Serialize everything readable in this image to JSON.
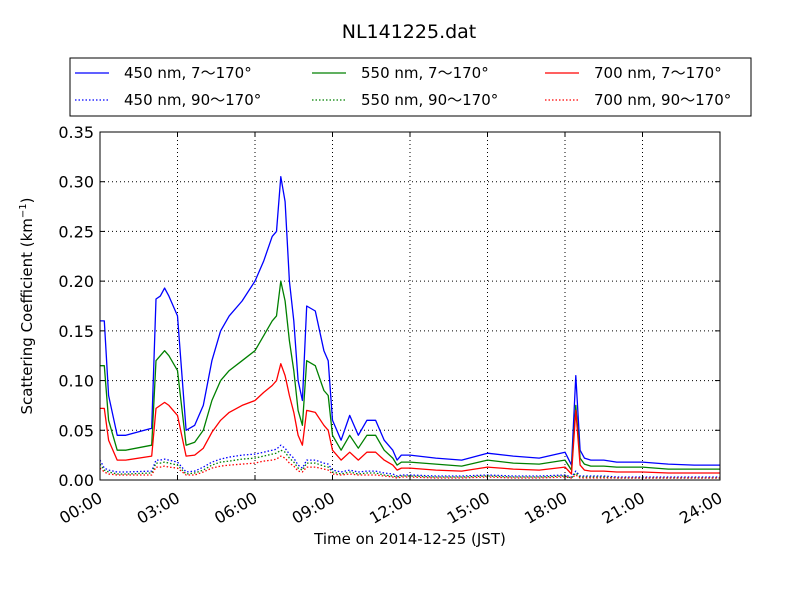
{
  "chart_data": {
    "type": "line",
    "title": "NL141225.dat",
    "xlabel": "Time on 2014-12-25 (JST)",
    "ylabel_main": "Scattering Coefficient (km",
    "ylabel_sup": "−1",
    "ylabel_end": ")",
    "xlim": [
      "00:00",
      "24:00"
    ],
    "ylim": [
      0,
      0.35
    ],
    "grid": true,
    "legend_placement": "top, above plot",
    "x_ticks": [
      "00:00",
      "03:00",
      "06:00",
      "09:00",
      "12:00",
      "15:00",
      "18:00",
      "21:00",
      "24:00"
    ],
    "y_ticks": [
      "0.00",
      "0.05",
      "0.10",
      "0.15",
      "0.20",
      "0.25",
      "0.30",
      "0.35"
    ],
    "x_tick_values": [
      0,
      3,
      6,
      9,
      12,
      15,
      18,
      21,
      24
    ],
    "y_tick_values": [
      0,
      0.05,
      0.1,
      0.15,
      0.2,
      0.25,
      0.3,
      0.35
    ],
    "x": [
      "00:00",
      "00:10",
      "00:20",
      "00:40",
      "01:00",
      "02:00",
      "02:10",
      "02:20",
      "02:30",
      "02:40",
      "03:00",
      "03:20",
      "03:40",
      "04:00",
      "04:20",
      "04:40",
      "05:00",
      "05:30",
      "06:00",
      "06:20",
      "06:40",
      "06:50",
      "07:00",
      "07:10",
      "07:20",
      "07:30",
      "07:40",
      "07:50",
      "08:00",
      "08:20",
      "08:40",
      "08:50",
      "09:00",
      "09:20",
      "09:40",
      "10:00",
      "10:20",
      "10:40",
      "11:00",
      "11:20",
      "11:30",
      "11:40",
      "12:00",
      "13:00",
      "14:00",
      "15:00",
      "16:00",
      "17:00",
      "18:00",
      "18:15",
      "18:25",
      "18:35",
      "18:45",
      "19:00",
      "19:30",
      "20:00",
      "21:00",
      "22:00",
      "23:00",
      "24:00"
    ],
    "series": [
      {
        "name": "450 nm, 7～170°",
        "color": "#0000ff",
        "style": "solid",
        "values": [
          0.16,
          0.16,
          0.085,
          0.045,
          0.045,
          0.052,
          0.182,
          0.185,
          0.193,
          0.185,
          0.165,
          0.05,
          0.055,
          0.075,
          0.12,
          0.15,
          0.165,
          0.18,
          0.2,
          0.22,
          0.245,
          0.25,
          0.305,
          0.28,
          0.2,
          0.16,
          0.1,
          0.08,
          0.175,
          0.17,
          0.13,
          0.12,
          0.06,
          0.04,
          0.065,
          0.045,
          0.06,
          0.06,
          0.04,
          0.03,
          0.02,
          0.025,
          0.025,
          0.022,
          0.02,
          0.027,
          0.024,
          0.022,
          0.028,
          0.015,
          0.105,
          0.03,
          0.022,
          0.02,
          0.02,
          0.018,
          0.018,
          0.016,
          0.015,
          0.015
        ]
      },
      {
        "name": "450 nm, 90～170°",
        "color": "#0000ff",
        "style": "dotted",
        "values": [
          0.02,
          0.012,
          0.01,
          0.008,
          0.008,
          0.009,
          0.02,
          0.02,
          0.021,
          0.02,
          0.018,
          0.008,
          0.009,
          0.013,
          0.018,
          0.021,
          0.023,
          0.025,
          0.026,
          0.028,
          0.03,
          0.031,
          0.035,
          0.032,
          0.026,
          0.022,
          0.015,
          0.012,
          0.02,
          0.02,
          0.017,
          0.016,
          0.01,
          0.008,
          0.01,
          0.008,
          0.009,
          0.009,
          0.007,
          0.006,
          0.004,
          0.005,
          0.005,
          0.004,
          0.004,
          0.005,
          0.004,
          0.004,
          0.005,
          0.003,
          0.009,
          0.004,
          0.004,
          0.004,
          0.004,
          0.003,
          0.003,
          0.003,
          0.003,
          0.003
        ]
      },
      {
        "name": "550 nm, 7～170°",
        "color": "#008000",
        "style": "solid",
        "values": [
          0.115,
          0.115,
          0.06,
          0.03,
          0.03,
          0.035,
          0.12,
          0.125,
          0.13,
          0.125,
          0.11,
          0.035,
          0.038,
          0.05,
          0.08,
          0.1,
          0.11,
          0.12,
          0.13,
          0.145,
          0.16,
          0.165,
          0.2,
          0.18,
          0.14,
          0.11,
          0.07,
          0.055,
          0.12,
          0.115,
          0.09,
          0.085,
          0.045,
          0.03,
          0.045,
          0.032,
          0.045,
          0.045,
          0.03,
          0.022,
          0.015,
          0.018,
          0.018,
          0.016,
          0.014,
          0.02,
          0.017,
          0.016,
          0.02,
          0.01,
          0.075,
          0.022,
          0.016,
          0.014,
          0.014,
          0.013,
          0.013,
          0.011,
          0.011,
          0.011
        ]
      },
      {
        "name": "550 nm, 90～170°",
        "color": "#008000",
        "style": "dotted",
        "values": [
          0.016,
          0.01,
          0.008,
          0.006,
          0.006,
          0.007,
          0.017,
          0.017,
          0.018,
          0.017,
          0.015,
          0.006,
          0.007,
          0.01,
          0.015,
          0.018,
          0.019,
          0.021,
          0.022,
          0.024,
          0.026,
          0.027,
          0.03,
          0.028,
          0.022,
          0.018,
          0.012,
          0.01,
          0.017,
          0.017,
          0.014,
          0.013,
          0.008,
          0.006,
          0.008,
          0.006,
          0.007,
          0.007,
          0.005,
          0.004,
          0.003,
          0.004,
          0.004,
          0.003,
          0.003,
          0.004,
          0.003,
          0.003,
          0.004,
          0.002,
          0.007,
          0.003,
          0.003,
          0.003,
          0.003,
          0.002,
          0.002,
          0.002,
          0.002,
          0.002
        ]
      },
      {
        "name": "700 nm, 7～170°",
        "color": "#ff0000",
        "style": "solid",
        "values": [
          0.072,
          0.072,
          0.04,
          0.02,
          0.02,
          0.024,
          0.072,
          0.075,
          0.078,
          0.075,
          0.065,
          0.024,
          0.025,
          0.032,
          0.048,
          0.06,
          0.068,
          0.075,
          0.08,
          0.088,
          0.095,
          0.1,
          0.117,
          0.105,
          0.085,
          0.068,
          0.045,
          0.035,
          0.07,
          0.068,
          0.055,
          0.05,
          0.03,
          0.02,
          0.028,
          0.02,
          0.028,
          0.028,
          0.02,
          0.015,
          0.01,
          0.012,
          0.012,
          0.01,
          0.009,
          0.013,
          0.011,
          0.01,
          0.013,
          0.006,
          0.07,
          0.015,
          0.01,
          0.009,
          0.009,
          0.008,
          0.008,
          0.007,
          0.007,
          0.007
        ]
      },
      {
        "name": "700 nm, 90～170°",
        "color": "#ff0000",
        "style": "dotted",
        "values": [
          0.012,
          0.008,
          0.006,
          0.005,
          0.005,
          0.005,
          0.013,
          0.013,
          0.014,
          0.013,
          0.012,
          0.005,
          0.005,
          0.008,
          0.012,
          0.014,
          0.015,
          0.016,
          0.017,
          0.019,
          0.02,
          0.021,
          0.024,
          0.022,
          0.017,
          0.014,
          0.009,
          0.008,
          0.013,
          0.013,
          0.011,
          0.01,
          0.006,
          0.005,
          0.006,
          0.005,
          0.005,
          0.005,
          0.004,
          0.003,
          0.002,
          0.003,
          0.003,
          0.002,
          0.002,
          0.003,
          0.002,
          0.002,
          0.003,
          0.002,
          0.005,
          0.002,
          0.002,
          0.002,
          0.002,
          0.002,
          0.002,
          0.002,
          0.002,
          0.002
        ]
      }
    ]
  }
}
